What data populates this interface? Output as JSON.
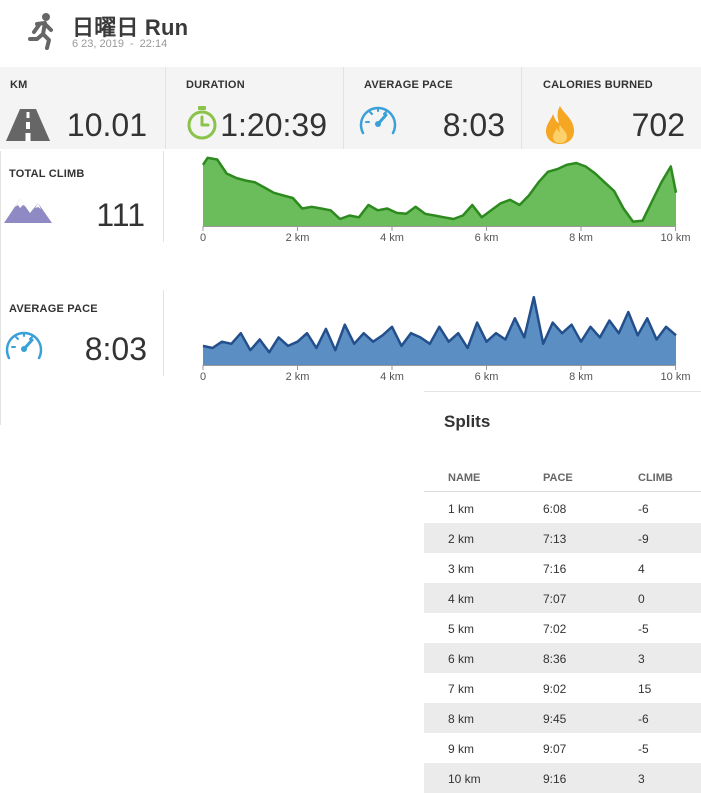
{
  "header": {
    "title": "日曜日 Run",
    "date": "6 23, 2019",
    "date_sep": "-",
    "time": "22:14"
  },
  "stats": {
    "km": {
      "label": "KM",
      "value": "10.01",
      "icon": "road-icon"
    },
    "duration": {
      "label": "DURATION",
      "value": "1:20:39",
      "icon": "stopwatch-icon"
    },
    "pace": {
      "label": "AVERAGE PACE",
      "value": "8:03",
      "icon": "speedometer-icon"
    },
    "calories": {
      "label": "CALORIES BURNED",
      "value": "702",
      "icon": "flame-icon"
    }
  },
  "climb": {
    "label": "TOTAL CLIMB",
    "value": "111",
    "icon": "mountain-icon"
  },
  "pace_panel": {
    "label": "AVERAGE PACE",
    "value": "8:03",
    "icon": "speedometer-icon"
  },
  "colors": {
    "climb_fill": "#6bbd5b",
    "climb_line": "#2d8a1e",
    "pace_fill": "#5b8fc4",
    "pace_line": "#234f8c",
    "road": "#666666",
    "stopwatch": "#8bc34a",
    "gauge": "#3aa0d8",
    "mountain": "#8f8ac4",
    "flame": "#f5a623",
    "row_alt": "#ebebeb"
  },
  "chart_data": [
    {
      "type": "area",
      "xlabel": "",
      "ylabel": "",
      "xlim": [
        0,
        10.01
      ],
      "xticks": [
        "0",
        "2 km",
        "4 km",
        "6 km",
        "8 km",
        "10 km"
      ],
      "x": [
        0,
        0.1,
        0.3,
        0.5,
        0.7,
        0.9,
        1.1,
        1.3,
        1.5,
        1.7,
        1.9,
        2.1,
        2.3,
        2.5,
        2.7,
        2.9,
        3.1,
        3.3,
        3.5,
        3.7,
        3.9,
        4.1,
        4.3,
        4.5,
        4.7,
        4.9,
        5.1,
        5.3,
        5.5,
        5.7,
        5.9,
        6.1,
        6.3,
        6.5,
        6.7,
        6.9,
        7.1,
        7.3,
        7.5,
        7.7,
        7.9,
        8.1,
        8.3,
        8.5,
        8.7,
        8.9,
        9.1,
        9.3,
        9.5,
        9.7,
        9.9,
        10.01
      ],
      "y": [
        70,
        78,
        76,
        60,
        55,
        52,
        50,
        44,
        38,
        35,
        32,
        20,
        22,
        20,
        18,
        8,
        12,
        10,
        24,
        18,
        20,
        15,
        14,
        22,
        14,
        12,
        10,
        8,
        12,
        24,
        10,
        18,
        26,
        30,
        24,
        35,
        50,
        62,
        65,
        70,
        72,
        68,
        60,
        50,
        40,
        20,
        5,
        6,
        28,
        50,
        68,
        38
      ]
    },
    {
      "type": "area",
      "xlabel": "",
      "ylabel": "",
      "xlim": [
        0,
        10.01
      ],
      "xticks": [
        "0",
        "2 km",
        "4 km",
        "6 km",
        "8 km",
        "10 km"
      ],
      "x": [
        0,
        0.2,
        0.4,
        0.6,
        0.8,
        1.0,
        1.2,
        1.4,
        1.6,
        1.8,
        2.0,
        2.2,
        2.4,
        2.6,
        2.8,
        3.0,
        3.2,
        3.4,
        3.6,
        3.8,
        4.0,
        4.2,
        4.4,
        4.6,
        4.8,
        5.0,
        5.2,
        5.4,
        5.6,
        5.8,
        6.0,
        6.2,
        6.4,
        6.6,
        6.8,
        7.0,
        7.2,
        7.4,
        7.6,
        7.8,
        8.0,
        8.2,
        8.4,
        8.6,
        8.8,
        9.0,
        9.2,
        9.4,
        9.6,
        9.8,
        10.01
      ],
      "y": [
        18,
        16,
        22,
        20,
        30,
        14,
        24,
        12,
        26,
        18,
        22,
        30,
        16,
        34,
        14,
        38,
        20,
        30,
        22,
        28,
        36,
        18,
        30,
        26,
        20,
        36,
        22,
        30,
        16,
        40,
        22,
        30,
        24,
        44,
        26,
        64,
        20,
        40,
        30,
        38,
        22,
        36,
        26,
        42,
        30,
        50,
        28,
        44,
        24,
        36,
        28
      ]
    }
  ],
  "splits": {
    "title": "Splits",
    "headers": [
      "NAME",
      "PACE",
      "CLIMB"
    ],
    "rows": [
      [
        "1 km",
        "6:08",
        "-6"
      ],
      [
        "2 km",
        "7:13",
        "-9"
      ],
      [
        "3 km",
        "7:16",
        "4"
      ],
      [
        "4 km",
        "7:07",
        "0"
      ],
      [
        "5 km",
        "7:02",
        "-5"
      ],
      [
        "6 km",
        "8:36",
        "3"
      ],
      [
        "7 km",
        "9:02",
        "15"
      ],
      [
        "8 km",
        "9:45",
        "-6"
      ],
      [
        "9 km",
        "9:07",
        "-5"
      ],
      [
        "10 km",
        "9:16",
        "3"
      ]
    ]
  }
}
